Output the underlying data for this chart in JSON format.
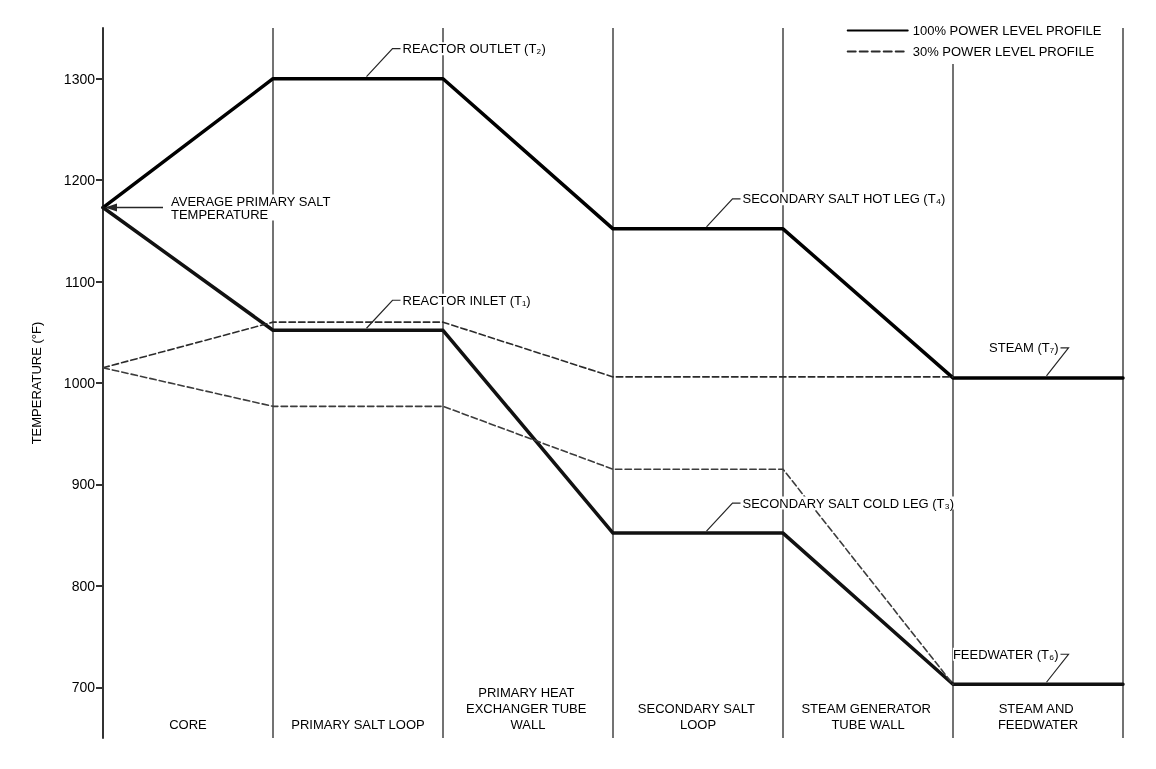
{
  "chart_data": {
    "type": "line",
    "ylabel": "TEMPERATURE (°F)",
    "categories": [
      null,
      null,
      null,
      null,
      null,
      null,
      null
    ],
    "ylim": [
      650,
      1350
    ],
    "yticks": [
      700,
      800,
      900,
      1000,
      1100,
      1200,
      1300
    ],
    "grid": "x",
    "legend": "top right",
    "marker": "none",
    "series": [
      {
        "name": "100% POWER LEVEL PROFILE",
        "color": "#000000",
        "line_style": "solid",
        "values": [
          1173,
          1300,
          1300,
          1152,
          1152,
          1005,
          1005
        ]
      },
      {
        "color": "#111111",
        "line_style": "solid",
        "values": [
          1173,
          1052,
          1052,
          852,
          852,
          703,
          703
        ]
      },
      {
        "name": "30% POWER LEVEL PROFILE",
        "color": "#2b2b2b",
        "line_style": "dashed",
        "values": [
          1015,
          1060,
          1060,
          1006,
          1006,
          1006,
          null
        ]
      },
      {
        "color": "#3c3c3c",
        "line_style": "dashed",
        "values": [
          1015,
          977,
          977,
          915,
          915,
          703,
          null
        ]
      }
    ],
    "annotations": [
      "REACTOR OUTLET (T₂)",
      "AVERAGE PRIMARY SALT TEMPERATURE",
      "REACTOR INLET (T₁)",
      "SECONDARY SALT HOT LEG (T₄)",
      "SECONDARY SALT COLD LEG (T₃)",
      "STEAM (T₇)",
      "FEEDWATER (T₆)",
      "CORE",
      "PRIMARY SALT LOOP",
      "PRIMARY HEAT EXCHANGER TUBE WALL",
      "SECONDARY SALT LOOP",
      "STEAM GENERATOR TUBE WALL",
      "STEAM AND FEEDWATER"
    ]
  }
}
